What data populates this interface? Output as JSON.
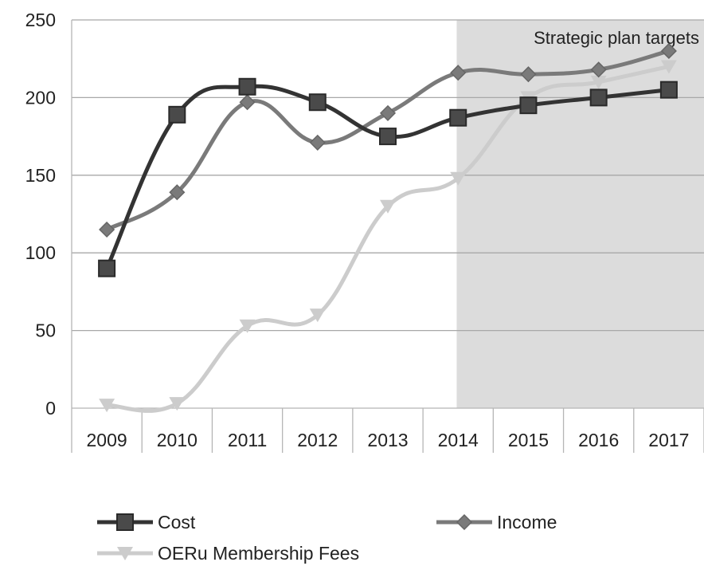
{
  "chart_data": {
    "type": "line",
    "title": "",
    "xlabel": "",
    "ylabel": "",
    "x": [
      "2009",
      "2010",
      "2011",
      "2012",
      "2013",
      "2014",
      "2015",
      "2016",
      "2017"
    ],
    "ylim": [
      0,
      250
    ],
    "yticks": [
      0,
      50,
      100,
      150,
      200,
      250
    ],
    "grid": "horizontal",
    "legend_position": "bottom",
    "series": [
      {
        "name": "Cost",
        "marker": "square",
        "color": "#333333",
        "values": [
          90,
          189,
          207,
          197,
          175,
          187,
          195,
          200,
          205
        ]
      },
      {
        "name": "Income",
        "marker": "diamond",
        "color": "#7a7a7a",
        "values": [
          115,
          139,
          197,
          171,
          190,
          216,
          215,
          218,
          230
        ]
      },
      {
        "name": "OERu Membership Fees",
        "marker": "triangle-down",
        "color": "#cccccc",
        "values": [
          2,
          3,
          53,
          60,
          130,
          148,
          200,
          210,
          220
        ]
      }
    ],
    "shaded_region": {
      "from": "2014",
      "to": "2017",
      "label": "Strategic plan targets",
      "color": "#dcdcdc"
    }
  }
}
